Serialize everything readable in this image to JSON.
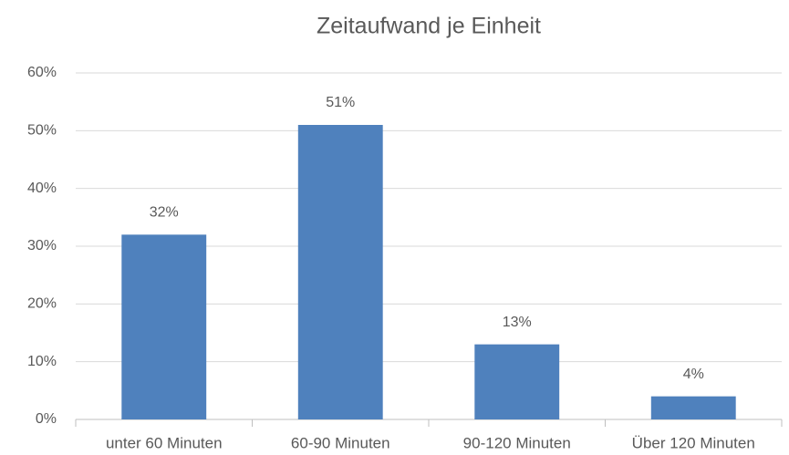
{
  "chart_data": {
    "type": "bar",
    "title": "Zeitaufwand je Einheit",
    "categories": [
      "unter 60 Minuten",
      "60-90 Minuten",
      "90-120 Minuten",
      "Über 120 Minuten"
    ],
    "values": [
      32,
      51,
      13,
      4
    ],
    "value_labels": [
      "32%",
      "51%",
      "13%",
      "4%"
    ],
    "color": "#4f81bd",
    "ylim": [
      0,
      60
    ],
    "yticks": [
      {
        "value": 0,
        "label": "0%"
      },
      {
        "value": 10,
        "label": "10%"
      },
      {
        "value": 20,
        "label": "20%"
      },
      {
        "value": 30,
        "label": "30%"
      },
      {
        "value": 40,
        "label": "40%"
      },
      {
        "value": 50,
        "label": "50%"
      },
      {
        "value": 60,
        "label": "60%"
      }
    ],
    "grid": true
  }
}
